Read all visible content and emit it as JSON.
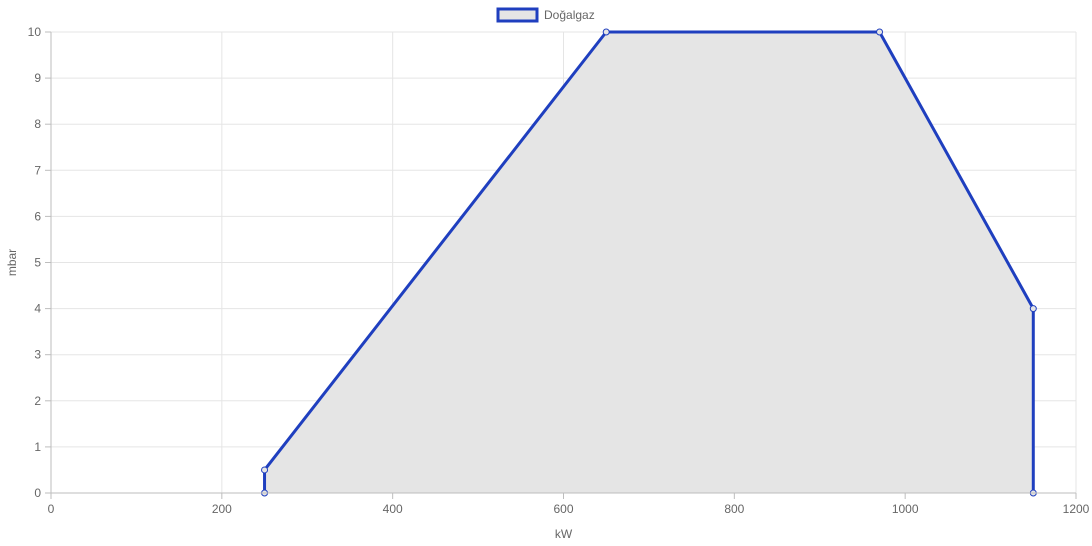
{
  "chart_data": {
    "type": "area",
    "xlabel": "kW",
    "ylabel": "mbar",
    "xlim": [
      0,
      1200
    ],
    "ylim": [
      0,
      10
    ],
    "x_ticks": [
      0,
      200,
      400,
      600,
      800,
      1000,
      1200
    ],
    "y_ticks": [
      0,
      1,
      2,
      3,
      4,
      5,
      6,
      7,
      8,
      9,
      10
    ],
    "grid": true,
    "legend_position": "top-center",
    "series": [
      {
        "name": "Doğalgaz",
        "points": [
          {
            "x": 250,
            "y": 0
          },
          {
            "x": 250,
            "y": 0.5
          },
          {
            "x": 650,
            "y": 10
          },
          {
            "x": 970,
            "y": 10
          },
          {
            "x": 1150,
            "y": 4
          },
          {
            "x": 1150,
            "y": 0
          }
        ],
        "line_color": "#1f3fbf",
        "fill_color": "#e5e5e5"
      }
    ]
  }
}
